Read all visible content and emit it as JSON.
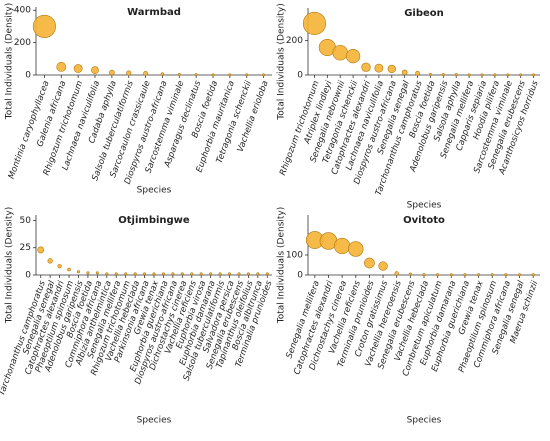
{
  "chart_data": [
    {
      "type": "bubble",
      "title": "Warmbad",
      "xlabel": "Species",
      "ylabel": "Total Individuals (Density)",
      "color": "#f5b335",
      "edgecolor": "#b07a10",
      "categories": [
        "Montinia caryophyllacea",
        "Galenia africana",
        "Rhigozum trichotomum",
        "Lachnaea naviculifolia",
        "Cadaba aphylla",
        "Salsola tuberculatiformis",
        "Sarcocaulon crassicaule",
        "Diospyros austro-africana",
        "Sarcostemma viminale",
        "Asparagus declinatus",
        "Boscia foetida",
        "Euphorbia mauritanica",
        "Tetragonia schenckii",
        "Vachellia erioloba"
      ],
      "values": [
        300,
        50,
        40,
        30,
        15,
        12,
        10,
        5,
        3,
        2,
        1,
        1,
        1,
        1
      ],
      "ylim": [
        0,
        420
      ],
      "yticks": [
        0,
        200,
        400
      ]
    },
    {
      "type": "bubble",
      "title": "Gibeon",
      "xlabel": "Species",
      "ylabel": "Total Individuals (Density)",
      "color": "#f5b335",
      "edgecolor": "#b07a10",
      "categories": [
        "Rhigozum trichotomum",
        "Atriplex lindleyi",
        "Senegalia nebrownii",
        "Tetragonia schenckii",
        "Catophractes alexandri",
        "Lachnaea naviculifolia",
        "Diospyros austro-africana",
        "Senegalia senegal",
        "Tarchonanthus camphoratus",
        "Boscia foetida",
        "Adenolobus garipensis",
        "Salsola aphylla",
        "Senegalia mellifera",
        "Capparis sepiaria",
        "Hoodia pilifera",
        "Sarcostemma viminale",
        "Senegalia erubescens",
        "Acanthosicyos horridus"
      ],
      "values": [
        300,
        160,
        130,
        110,
        45,
        40,
        35,
        15,
        10,
        3,
        2,
        2,
        1,
        1,
        1,
        1,
        1,
        1
      ],
      "ylim": [
        0,
        390
      ],
      "yticks": [
        0,
        200
      ]
    },
    {
      "type": "bubble",
      "title": "Otjimbingwe",
      "xlabel": "Species",
      "ylabel": "Total Individuals (Density)",
      "color": "#f5b335",
      "edgecolor": "#b07a10",
      "categories": [
        "Tarchonanthus camphoratus",
        "Senegalia senegal",
        "Catophractes alexandri",
        "Phaeoptilum spinosum",
        "Adenolobus garipensis",
        "Boscia foetida",
        "Commiphora africana",
        "Albizia anthelmintica",
        "Senegalia mellifera",
        "Rhigozum trichotomum",
        "Vachellia hebeclada",
        "Parkinsonia africana",
        "Grewia tenax",
        "Euphorbia guerichiana",
        "Diospyros austro-africana",
        "Dichrostachys cinerea",
        "Vachellia reficiens",
        "Euphorbia virosa",
        "Euphorbia damarana",
        "Salsola tuberculatiformis",
        "Salvadora persica",
        "Senegalia erubescens",
        "Tapinanthus oleifolius",
        "Boscia albitrunca",
        "Terminalia prunioides"
      ],
      "values": [
        23,
        13,
        8,
        5,
        3,
        2,
        2,
        1,
        1,
        1,
        1,
        1,
        1,
        1,
        1,
        1,
        1,
        1,
        1,
        1,
        1,
        1,
        1,
        1,
        1
      ],
      "ylim": [
        0,
        55
      ],
      "yticks": [
        0,
        25,
        50
      ]
    },
    {
      "type": "bubble",
      "title": "Ovitoto",
      "xlabel": "Species",
      "ylabel": "Total Individuals (Density)",
      "color": "#f5b335",
      "edgecolor": "#b07a10",
      "categories": [
        "Senegalia mellifera",
        "Catophractes alexandri",
        "Dichrostachys cinerea",
        "Vachellia reficiens",
        "Terminalia prunioides",
        "Croton gratissimus",
        "Vachellia hereroensis",
        "Senegalia erubescens",
        "Vachellia hebeclada",
        "Combretum apiculatum",
        "Euphorbia damarana",
        "Euphorbia guerichiana",
        "Grewia tenax",
        "Phaeoptilum spinosum",
        "Commiphora africana",
        "Senegalia senegal",
        "Maerua schinzii"
      ],
      "values": [
        175,
        170,
        145,
        130,
        60,
        45,
        8,
        4,
        2,
        1,
        1,
        1,
        1,
        1,
        1,
        1,
        1
      ],
      "ylim": [
        0,
        300
      ],
      "yticks": [
        0,
        100
      ]
    }
  ]
}
